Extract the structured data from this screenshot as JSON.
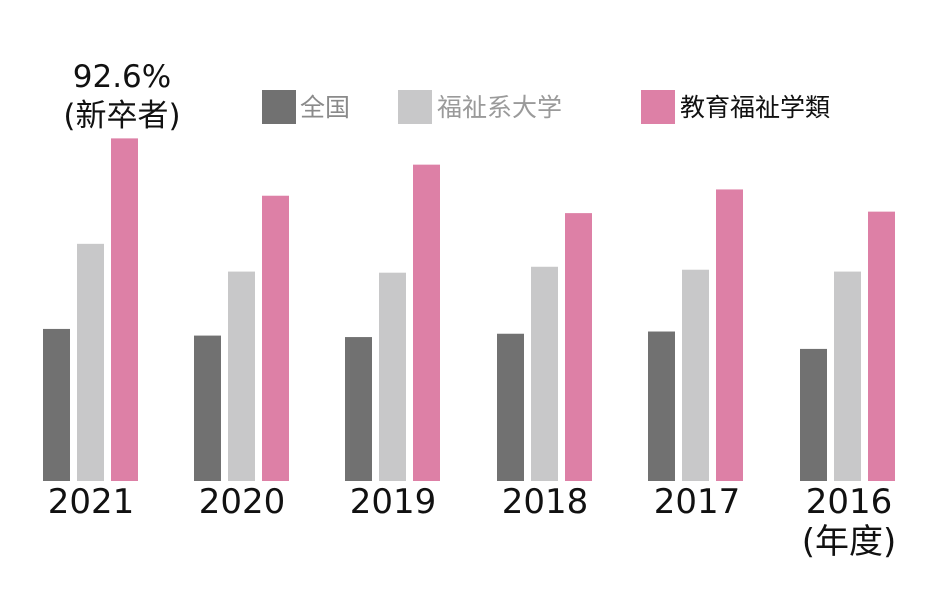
{
  "chart_data": {
    "type": "bar",
    "categories": [
      "2021",
      "2020",
      "2019",
      "2018",
      "2017",
      "2016"
    ],
    "category_unit_label": "(年度)",
    "series": [
      {
        "name": "全国",
        "color": "#717171",
        "values": [
          41.1,
          39.3,
          38.9,
          39.8,
          40.4,
          35.7
        ]
      },
      {
        "name": "福祉系大学",
        "color": "#c8c8c9",
        "values": [
          64.1,
          56.6,
          56.3,
          57.9,
          57.1,
          56.6
        ]
      },
      {
        "name": "教育福祉学類",
        "color": "#dd80a6",
        "values": [
          92.6,
          77.1,
          85.5,
          72.4,
          78.8,
          72.8
        ]
      }
    ],
    "annotation": {
      "line1": "92.6%",
      "line2": "(新卒者)"
    },
    "legend_position": "top",
    "grid": false,
    "ylim": [
      0,
      100
    ]
  }
}
